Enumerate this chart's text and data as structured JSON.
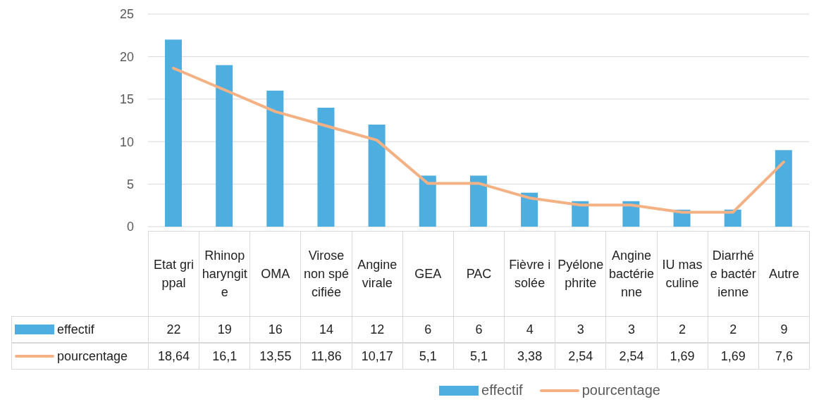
{
  "chart_data": {
    "type": "bar",
    "categories": [
      "Etat grippal",
      "Rhinopharyngite",
      "OMA",
      "Virose non spécifiée",
      "Angine virale",
      "GEA",
      "PAC",
      "Fièvre isolée",
      "Pyélonephrite",
      "Angine bactérienne",
      "IU masculine",
      "Diarrhée bactérienne",
      "Autre"
    ],
    "series": [
      {
        "name": "effectif",
        "color": "#4eaee0",
        "values": [
          22,
          19,
          16,
          14,
          12,
          6,
          6,
          4,
          3,
          3,
          2,
          2,
          9
        ],
        "value_labels": [
          "22",
          "19",
          "16",
          "14",
          "12",
          "6",
          "6",
          "4",
          "3",
          "3",
          "2",
          "2",
          "9"
        ]
      },
      {
        "name": "pourcentage",
        "type": "line",
        "color": "#f4b183",
        "values": [
          18.64,
          16.1,
          13.55,
          11.86,
          10.17,
          5.1,
          5.1,
          3.38,
          2.54,
          2.54,
          1.69,
          1.69,
          7.6
        ],
        "value_labels": [
          "18,64",
          "16,1",
          "13,55",
          "11,86",
          "10,17",
          "5,1",
          "5,1",
          "3,38",
          "2,54",
          "2,54",
          "1,69",
          "1,69",
          "7,6"
        ]
      }
    ],
    "ylim": [
      0,
      25
    ],
    "yticks": [
      0,
      5,
      10,
      15,
      20,
      25
    ],
    "grid": "y",
    "legend": "bottom"
  }
}
